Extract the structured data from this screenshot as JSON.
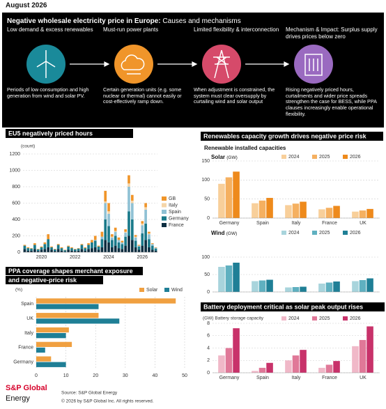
{
  "date": "August 2026",
  "banner": {
    "title": "Negative wholesale electricity price in Europe:",
    "subtitle": "Causes and mechanisms",
    "steps": [
      {
        "heading": "Low demand & excess renewables",
        "text": "Periods of low consumption and high generation from wind and solar PV."
      },
      {
        "heading": "Must-run power plants",
        "text": "Certain generation units (e.g. some nuclear or thermal) cannot easily or cost-effectively ramp down."
      },
      {
        "heading": "Limited flexibility & interconnection",
        "text": "When adjustment is constrained, the system must clear oversupply by curtailing wind and solar output"
      },
      {
        "heading": "Mechanism & Impact: Surplus supply drives prices below zero",
        "text": "Rising negatively priced hours, curtailments and wider price spreads strengthen the case for BESS, while PPA clauses increasingly enable operational flexibility."
      }
    ]
  },
  "renewables": {
    "title": "Renewables capacity growth drives negative price risk",
    "subtitle": "Renewable installed capacities"
  },
  "chart_data": [
    {
      "type": "bar",
      "stacked": true,
      "title": "EU5 negatively priced hours",
      "unit": "(count)",
      "legend": "right",
      "categories": [
        null,
        null,
        null,
        null,
        null,
        "2020",
        null,
        null,
        null,
        null,
        null,
        null,
        null,
        null,
        null,
        "2022",
        null,
        null,
        null,
        null,
        null,
        null,
        null,
        null,
        null,
        "2024",
        null,
        null,
        null,
        null,
        null,
        null,
        null,
        null,
        null,
        "2026",
        null,
        null,
        null,
        null
      ],
      "series": [
        {
          "name": "GB",
          "color": "#f0952a",
          "values": [
            10,
            10,
            5,
            20,
            5,
            10,
            20,
            60,
            10,
            5,
            10,
            10,
            5,
            10,
            10,
            5,
            5,
            10,
            10,
            20,
            30,
            50,
            10,
            60,
            130,
            100,
            30,
            40,
            30,
            20,
            30,
            100,
            70,
            20,
            10,
            30,
            50,
            20,
            10,
            5
          ]
        },
        {
          "name": "Italy",
          "color": "#f5d5a8",
          "values": [
            0,
            0,
            0,
            0,
            0,
            0,
            0,
            0,
            0,
            0,
            0,
            0,
            0,
            0,
            0,
            0,
            0,
            0,
            0,
            0,
            0,
            0,
            0,
            0,
            20,
            30,
            10,
            10,
            0,
            0,
            10,
            40,
            30,
            10,
            0,
            20,
            30,
            10,
            0,
            0
          ]
        },
        {
          "name": "Spain",
          "color": "#8fc1d4",
          "values": [
            0,
            0,
            0,
            0,
            0,
            0,
            0,
            0,
            0,
            0,
            0,
            0,
            0,
            0,
            0,
            0,
            0,
            0,
            0,
            0,
            0,
            10,
            0,
            30,
            200,
            150,
            30,
            50,
            30,
            20,
            50,
            300,
            200,
            40,
            10,
            100,
            170,
            60,
            20,
            10
          ]
        },
        {
          "name": "Germany",
          "color": "#1a7a8a",
          "values": [
            40,
            30,
            25,
            50,
            20,
            30,
            60,
            100,
            30,
            20,
            50,
            30,
            15,
            40,
            30,
            20,
            25,
            50,
            30,
            50,
            70,
            80,
            40,
            100,
            250,
            200,
            90,
            120,
            70,
            60,
            110,
            300,
            250,
            80,
            40,
            150,
            200,
            100,
            50,
            25
          ]
        },
        {
          "name": "France",
          "color": "#0d2d40",
          "values": [
            40,
            20,
            20,
            40,
            15,
            30,
            40,
            60,
            30,
            15,
            40,
            20,
            10,
            30,
            20,
            15,
            20,
            40,
            20,
            40,
            50,
            60,
            30,
            60,
            150,
            120,
            60,
            80,
            50,
            40,
            80,
            200,
            150,
            60,
            30,
            80,
            150,
            60,
            30,
            20
          ]
        }
      ],
      "ylim": [
        0,
        1200
      ],
      "yticks": [
        0,
        200,
        400,
        600,
        800,
        1000,
        1200
      ],
      "grid": true
    },
    {
      "type": "bar",
      "title": "Solar",
      "unit": "(GW)",
      "legend": "top",
      "categories": [
        "Germany",
        "Spain",
        "Italy",
        "France",
        "UK"
      ],
      "series": [
        {
          "name": "2024",
          "color": "#f8cf9a",
          "values": [
            90,
            39,
            34,
            23,
            17
          ]
        },
        {
          "name": "2025",
          "color": "#f5b060",
          "values": [
            107,
            46,
            38,
            27,
            20
          ]
        },
        {
          "name": "2026",
          "color": "#ee8a1c",
          "values": [
            122,
            53,
            43,
            32,
            24
          ]
        }
      ],
      "ylim": [
        0,
        150
      ],
      "yticks": [
        0,
        50,
        100,
        150
      ],
      "grid": true
    },
    {
      "type": "bar",
      "title": "Wind",
      "unit": "(GW)",
      "legend": "top",
      "categories": [
        null,
        null,
        null,
        null,
        null
      ],
      "series": [
        {
          "name": "2024",
          "color": "#a8d4dc",
          "values": [
            72,
            31,
            13,
            24,
            31
          ]
        },
        {
          "name": "2025",
          "color": "#5fb0c0",
          "values": [
            76,
            33,
            14,
            27,
            34
          ]
        },
        {
          "name": "2026",
          "color": "#1f7f96",
          "values": [
            84,
            35,
            15,
            30,
            39
          ]
        }
      ],
      "ylim": [
        0,
        100
      ],
      "yticks": [
        0,
        50,
        100
      ],
      "grid": true
    },
    {
      "type": "bar",
      "title": "Battery deployment critical as solar peak output rises",
      "subtitle": "(GW) Battery storage capacity",
      "legend": "top",
      "categories": [
        "Germany",
        "Spain",
        "Italy",
        "France",
        "UK"
      ],
      "series": [
        {
          "name": "2024",
          "color": "#f0b8c8",
          "values": [
            2.8,
            0.3,
            2.0,
            0.8,
            4.3
          ]
        },
        {
          "name": "2025",
          "color": "#e07898",
          "values": [
            4.0,
            0.8,
            2.8,
            1.3,
            5.3
          ]
        },
        {
          "name": "2026",
          "color": "#c8326a",
          "values": [
            7.2,
            1.6,
            3.7,
            1.9,
            7.5
          ]
        }
      ],
      "ylim": [
        0,
        8
      ],
      "yticks": [
        0,
        2,
        4,
        6,
        8
      ],
      "grid": true
    },
    {
      "type": "barh",
      "title_lines": [
        "PPA coverage shapes merchant exposure",
        "and negative-price risk"
      ],
      "unit": "(%)",
      "legend": "top",
      "categories": [
        "Spain",
        "UK",
        "Italy",
        "France",
        "Germany"
      ],
      "series": [
        {
          "name": "Solar",
          "color": "#f0a040",
          "values": [
            47,
            21,
            11,
            12,
            5
          ]
        },
        {
          "name": "Wind",
          "color": "#1f7f96",
          "values": [
            21,
            28,
            10,
            3,
            10
          ]
        }
      ],
      "xlim": [
        0,
        50
      ],
      "xticks": [
        0,
        10,
        20,
        30,
        40,
        50
      ],
      "grid": true
    }
  ],
  "footer": {
    "logo_1": "S&P Global",
    "logo_2": "Energy",
    "source": "Source: S&P Global Energy",
    "copyright": "© 2026 by S&P Global Inc. All rights reserved."
  }
}
